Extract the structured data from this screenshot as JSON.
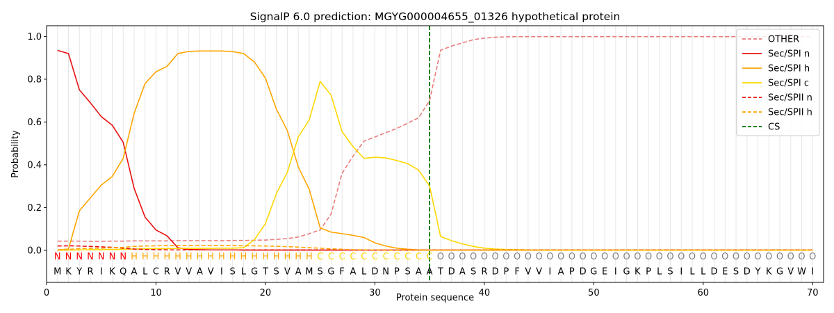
{
  "chart_data": {
    "type": "line",
    "title": "SignalP 6.0 prediction: MGYG000004655_01326 hypothetical protein",
    "xlabel": "Protein sequence",
    "ylabel": "Probability",
    "xlim": [
      0,
      71
    ],
    "ylim": [
      -0.15,
      1.05
    ],
    "x_ticks": [
      0,
      10,
      20,
      30,
      40,
      50,
      60,
      70
    ],
    "y_ticks": [
      0.0,
      0.2,
      0.4,
      0.6,
      0.8,
      1.0
    ],
    "x_tick_labels": [
      "0",
      "10",
      "20",
      "30",
      "40",
      "50",
      "60",
      "70"
    ],
    "y_tick_labels": [
      "0.0",
      "0.2",
      "0.4",
      "0.6",
      "0.8",
      "1.0"
    ],
    "grid": "vertical lines at each residue",
    "legend_position": "top-right",
    "sequence": [
      "M",
      "K",
      "Y",
      "R",
      "I",
      "K",
      "Q",
      "A",
      "L",
      "C",
      "R",
      "V",
      "V",
      "A",
      "V",
      "I",
      "S",
      "L",
      "G",
      "T",
      "S",
      "V",
      "A",
      "M",
      "S",
      "G",
      "F",
      "A",
      "L",
      "D",
      "N",
      "P",
      "S",
      "A",
      "A",
      "T",
      "D",
      "A",
      "S",
      "R",
      "D",
      "P",
      "F",
      "V",
      "V",
      "I",
      "A",
      "P",
      "D",
      "G",
      "E",
      "I",
      "G",
      "K",
      "P",
      "L",
      "S",
      "I",
      "L",
      "L",
      "D",
      "E",
      "S",
      "D",
      "Y",
      "K",
      "G",
      "V",
      "W",
      "I"
    ],
    "annotation": [
      "N",
      "N",
      "N",
      "N",
      "N",
      "N",
      "N",
      "H",
      "H",
      "H",
      "H",
      "H",
      "H",
      "H",
      "H",
      "H",
      "H",
      "H",
      "H",
      "H",
      "H",
      "H",
      "H",
      "H",
      "C",
      "C",
      "C",
      "C",
      "C",
      "C",
      "C",
      "C",
      "C",
      "C",
      "C",
      "O",
      "O",
      "O",
      "O",
      "O",
      "O",
      "O",
      "O",
      "O",
      "O",
      "O",
      "O",
      "O",
      "O",
      "O",
      "O",
      "O",
      "O",
      "O",
      "O",
      "O",
      "O",
      "O",
      "O",
      "O",
      "O",
      "O",
      "O",
      "O",
      "O",
      "O",
      "O",
      "O",
      "O",
      "O"
    ],
    "annotation_colors": {
      "N": "#ff0000",
      "H": "#ffa500",
      "C": "#ffd700",
      "O": "#808080"
    },
    "cs_position": 35,
    "series": [
      {
        "name": "OTHER",
        "color": "#e87c7c",
        "dash": "dashed",
        "values": [
          0.043,
          0.043,
          0.043,
          0.042,
          0.042,
          0.043,
          0.043,
          0.044,
          0.044,
          0.044,
          0.044,
          0.045,
          0.045,
          0.045,
          0.045,
          0.045,
          0.046,
          0.046,
          0.047,
          0.048,
          0.051,
          0.055,
          0.062,
          0.078,
          0.095,
          0.17,
          0.36,
          0.44,
          0.51,
          0.53,
          0.55,
          0.57,
          0.595,
          0.62,
          0.7,
          0.935,
          0.955,
          0.97,
          0.985,
          0.992,
          0.996,
          0.998,
          0.999,
          0.999,
          0.999,
          0.999,
          0.999,
          0.999,
          0.999,
          0.999,
          0.999,
          0.999,
          0.999,
          0.999,
          0.999,
          0.999,
          0.999,
          0.999,
          0.999,
          0.999,
          0.999,
          0.999,
          0.999,
          0.999,
          0.999,
          0.999,
          0.999,
          0.999,
          0.999,
          0.999
        ]
      },
      {
        "name": "Sec/SPI n",
        "color": "#e81010",
        "dash": "solid",
        "values": [
          0.935,
          0.92,
          0.75,
          0.69,
          0.625,
          0.585,
          0.505,
          0.29,
          0.155,
          0.095,
          0.068,
          0.012,
          0.004,
          0.003,
          0.002,
          0.002,
          0.002,
          0.001,
          0.001,
          0.001,
          0.001,
          0.001,
          0.001,
          0.001,
          0.001,
          0.001,
          0.001,
          0.001,
          0.001,
          0.001,
          0.001,
          0.001,
          0.001,
          0.001,
          0.001,
          0.001,
          0.001,
          0.001,
          0.001,
          0.001,
          0.001,
          0.001,
          0.001,
          0.001,
          0.001,
          0.001,
          0.001,
          0.001,
          0.001,
          0.001,
          0.001,
          0.001,
          0.001,
          0.001,
          0.001,
          0.001,
          0.001,
          0.001,
          0.001,
          0.001,
          0.001,
          0.001,
          0.001,
          0.001,
          0.001,
          0.001,
          0.001,
          0.001,
          0.001,
          0.001
        ]
      },
      {
        "name": "Sec/SPI h",
        "color": "#ffa500",
        "dash": "solid",
        "values": [
          0.002,
          0.006,
          0.185,
          0.245,
          0.305,
          0.345,
          0.43,
          0.64,
          0.78,
          0.835,
          0.86,
          0.92,
          0.93,
          0.932,
          0.932,
          0.932,
          0.929,
          0.92,
          0.88,
          0.805,
          0.66,
          0.56,
          0.39,
          0.285,
          0.105,
          0.085,
          0.078,
          0.07,
          0.06,
          0.035,
          0.02,
          0.01,
          0.005,
          0.002,
          0.001,
          0.001,
          0.001,
          0.001,
          0.001,
          0.001,
          0.001,
          0.001,
          0.001,
          0.001,
          0.001,
          0.001,
          0.001,
          0.001,
          0.001,
          0.001,
          0.001,
          0.001,
          0.001,
          0.001,
          0.001,
          0.001,
          0.001,
          0.001,
          0.001,
          0.001,
          0.001,
          0.001,
          0.001,
          0.001,
          0.001,
          0.001,
          0.001,
          0.001,
          0.001,
          0.001
        ]
      },
      {
        "name": "Sec/SPI c",
        "color": "#ffd700",
        "dash": "solid",
        "values": [
          0.001,
          0.001,
          0.002,
          0.003,
          0.003,
          0.004,
          0.005,
          0.006,
          0.007,
          0.008,
          0.008,
          0.009,
          0.009,
          0.009,
          0.009,
          0.01,
          0.01,
          0.012,
          0.05,
          0.125,
          0.265,
          0.365,
          0.53,
          0.61,
          0.79,
          0.725,
          0.555,
          0.485,
          0.43,
          0.435,
          0.432,
          0.42,
          0.405,
          0.375,
          0.3,
          0.065,
          0.045,
          0.03,
          0.018,
          0.01,
          0.006,
          0.004,
          0.003,
          0.002,
          0.002,
          0.001,
          0.001,
          0.001,
          0.001,
          0.001,
          0.001,
          0.001,
          0.001,
          0.001,
          0.001,
          0.001,
          0.001,
          0.001,
          0.001,
          0.001,
          0.001,
          0.001,
          0.001,
          0.001,
          0.001,
          0.001,
          0.001,
          0.001,
          0.001,
          0.001
        ]
      },
      {
        "name": "Sec/SPII n",
        "color": "#e81010",
        "dash": "dashed",
        "values": [
          0.02,
          0.021,
          0.02,
          0.018,
          0.016,
          0.014,
          0.01,
          0.006,
          0.004,
          0.003,
          0.002,
          0.002,
          0.002,
          0.002,
          0.002,
          0.002,
          0.002,
          0.002,
          0.002,
          0.002,
          0.002,
          0.002,
          0.002,
          0.002,
          0.002,
          0.002,
          0.002,
          0.002,
          0.002,
          0.002,
          0.002,
          0.002,
          0.002,
          0.002,
          0.002,
          0.002,
          0.002,
          0.002,
          0.002,
          0.002,
          0.002,
          0.002,
          0.002,
          0.002,
          0.002,
          0.002,
          0.002,
          0.002,
          0.002,
          0.002,
          0.002,
          0.002,
          0.002,
          0.002,
          0.002,
          0.002,
          0.002,
          0.002,
          0.002,
          0.002,
          0.002,
          0.002,
          0.002,
          0.002,
          0.002,
          0.002,
          0.002,
          0.002,
          0.002,
          0.002
        ]
      },
      {
        "name": "Sec/SPII h",
        "color": "#ffa500",
        "dash": "dashed",
        "values": [
          0.001,
          0.004,
          0.008,
          0.009,
          0.01,
          0.012,
          0.014,
          0.018,
          0.02,
          0.021,
          0.022,
          0.022,
          0.022,
          0.022,
          0.022,
          0.022,
          0.022,
          0.021,
          0.021,
          0.02,
          0.019,
          0.017,
          0.015,
          0.012,
          0.01,
          0.007,
          0.005,
          0.003,
          0.002,
          0.002,
          0.001,
          0.001,
          0.001,
          0.001,
          0.001,
          0.001,
          0.001,
          0.001,
          0.001,
          0.001,
          0.001,
          0.001,
          0.001,
          0.001,
          0.001,
          0.001,
          0.001,
          0.001,
          0.001,
          0.001,
          0.001,
          0.001,
          0.001,
          0.001,
          0.001,
          0.001,
          0.001,
          0.001,
          0.001,
          0.001,
          0.001,
          0.001,
          0.001,
          0.001,
          0.001,
          0.001,
          0.001,
          0.001,
          0.001,
          0.001
        ]
      }
    ],
    "legend": [
      {
        "label": "OTHER",
        "color": "#e87c7c",
        "dash": "dashed"
      },
      {
        "label": "Sec/SPI n",
        "color": "#e81010",
        "dash": "solid"
      },
      {
        "label": "Sec/SPI h",
        "color": "#ffa500",
        "dash": "solid"
      },
      {
        "label": "Sec/SPI c",
        "color": "#ffd700",
        "dash": "solid"
      },
      {
        "label": "Sec/SPII n",
        "color": "#e81010",
        "dash": "dashed"
      },
      {
        "label": "Sec/SPII h",
        "color": "#ffa500",
        "dash": "dashed"
      },
      {
        "label": "CS",
        "color": "#007000",
        "dash": "dashed"
      }
    ]
  }
}
